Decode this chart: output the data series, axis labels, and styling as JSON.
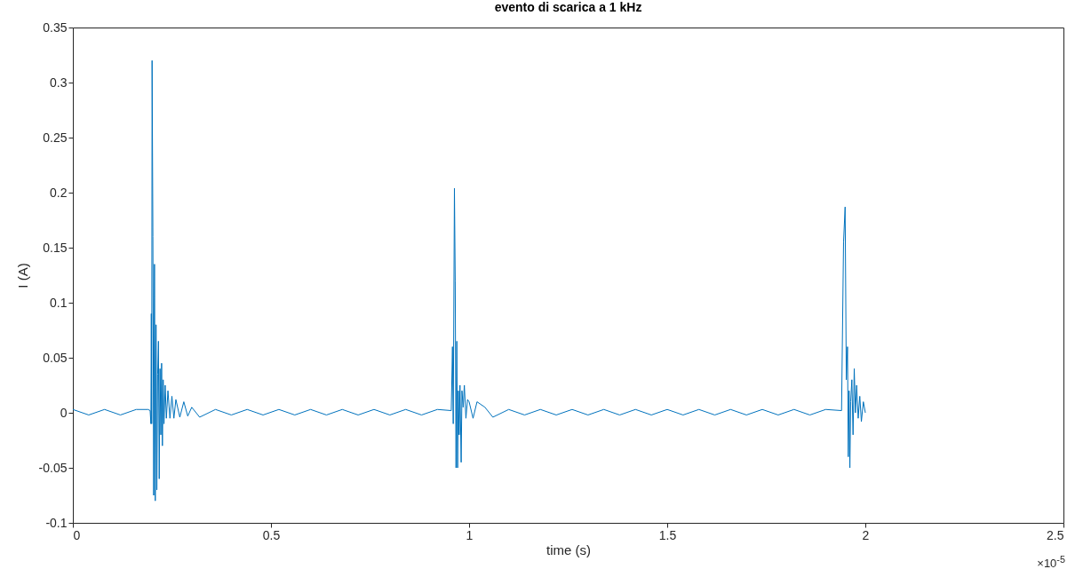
{
  "chart_data": {
    "type": "line",
    "title": "evento di scarica a 1 kHz",
    "xlabel": "time (s)",
    "ylabel": "I (A)",
    "annotations": [
      "×10$^{-5}$"
    ],
    "color": "#0072bd",
    "xlim": [
      0,
      2.5
    ],
    "ylim": [
      -0.1,
      0.35
    ],
    "xticks": [
      0,
      0.5,
      1,
      1.5,
      2,
      2.5
    ],
    "yticks": [
      -0.1,
      -0.05,
      0,
      0.05,
      0.1,
      0.15,
      0.2,
      0.25,
      0.3,
      0.35
    ],
    "x": [
      0,
      0.04,
      0.08,
      0.12,
      0.16,
      0.19,
      0.195,
      0.197,
      0.198,
      0.199,
      0.2,
      0.202,
      0.204,
      0.206,
      0.208,
      0.21,
      0.212,
      0.214,
      0.216,
      0.218,
      0.22,
      0.222,
      0.224,
      0.226,
      0.228,
      0.23,
      0.233,
      0.236,
      0.24,
      0.245,
      0.25,
      0.255,
      0.26,
      0.27,
      0.28,
      0.29,
      0.3,
      0.32,
      0.36,
      0.4,
      0.44,
      0.48,
      0.52,
      0.56,
      0.6,
      0.64,
      0.68,
      0.72,
      0.76,
      0.8,
      0.84,
      0.88,
      0.92,
      0.955,
      0.958,
      0.96,
      0.963,
      0.965,
      0.967,
      0.969,
      0.971,
      0.973,
      0.975,
      0.977,
      0.98,
      0.982,
      0.985,
      0.988,
      0.992,
      0.996,
      1,
      1.01,
      1.02,
      1.04,
      1.06,
      1.1,
      1.14,
      1.18,
      1.22,
      1.26,
      1.3,
      1.34,
      1.38,
      1.42,
      1.46,
      1.5,
      1.54,
      1.58,
      1.62,
      1.66,
      1.7,
      1.74,
      1.78,
      1.82,
      1.86,
      1.9,
      1.94,
      1.945,
      1.949,
      1.952,
      1.955,
      1.957,
      1.959,
      1.961,
      1.963,
      1.966,
      1.969,
      1.972,
      1.975,
      1.978,
      1.982,
      1.986,
      1.99,
      1.995,
      2
    ],
    "values": [
      0.003,
      -0.002,
      0.003,
      -0.002,
      0.003,
      0.003,
      0.002,
      -0.01,
      0.09,
      -0.01,
      0.32,
      0.16,
      -0.075,
      0.135,
      -0.08,
      0.08,
      -0.07,
      0.035,
      0.065,
      -0.06,
      0.04,
      -0.02,
      0.045,
      -0.03,
      0.03,
      -0.01,
      0.025,
      -0.005,
      0.02,
      -0.005,
      0.015,
      -0.005,
      0.012,
      -0.004,
      0.01,
      -0.003,
      0.005,
      -0.004,
      0.003,
      -0.002,
      0.003,
      -0.002,
      0.003,
      -0.002,
      0.003,
      -0.002,
      0.003,
      -0.002,
      0.003,
      -0.002,
      0.003,
      -0.002,
      0.003,
      0.002,
      0.06,
      -0.01,
      0.204,
      0.12,
      -0.05,
      0.065,
      -0.05,
      0.02,
      -0.02,
      0.025,
      -0.045,
      0.02,
      0.005,
      0.025,
      -0.005,
      0.012,
      0.01,
      -0.005,
      0.01,
      0.005,
      -0.004,
      0.003,
      -0.002,
      0.003,
      -0.002,
      0.003,
      -0.002,
      0.003,
      -0.002,
      0.003,
      -0.002,
      0.003,
      -0.002,
      0.003,
      -0.002,
      0.003,
      -0.002,
      0.003,
      -0.002,
      0.003,
      -0.002,
      0.003,
      0.002,
      0.155,
      0.187,
      0.03,
      0.06,
      -0.04,
      0.02,
      -0.05,
      0.01,
      0.03,
      -0.02,
      0.04,
      0,
      0.025,
      -0.005,
      0.015,
      -0.008,
      0.01,
      0
    ]
  }
}
